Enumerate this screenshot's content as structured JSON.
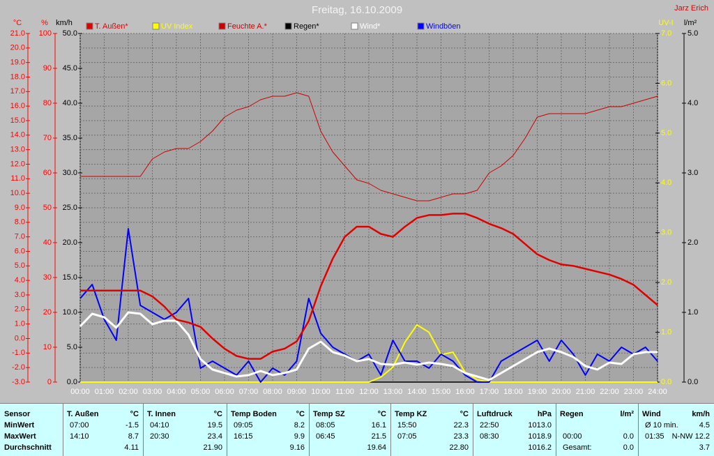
{
  "chart_data": {
    "type": "line",
    "title": "Freitag, 16.10.2009",
    "author": "Jarz Erich",
    "x": [
      0,
      0.5,
      1,
      1.5,
      2,
      2.5,
      3,
      3.5,
      4,
      4.5,
      5,
      5.5,
      6,
      6.5,
      7,
      7.5,
      8,
      8.5,
      9,
      9.5,
      10,
      10.5,
      11,
      11.5,
      12,
      12.5,
      13,
      13.5,
      14,
      14.5,
      15,
      15.5,
      16,
      16.5,
      17,
      17.5,
      18,
      18.5,
      19,
      19.5,
      20,
      20.5,
      21,
      21.5,
      22,
      22.5,
      23,
      23.5,
      24
    ],
    "xlim": [
      0,
      24
    ],
    "xticks": [
      {
        "value": 0,
        "label": "00:00"
      },
      {
        "value": 1,
        "label": "01:00"
      },
      {
        "value": 2,
        "label": "02:00"
      },
      {
        "value": 3,
        "label": "03:00"
      },
      {
        "value": 4,
        "label": "04:00"
      },
      {
        "value": 5,
        "label": "05:00"
      },
      {
        "value": 6,
        "label": "06:00"
      },
      {
        "value": 7,
        "label": "07:00"
      },
      {
        "value": 8,
        "label": "08:00"
      },
      {
        "value": 9,
        "label": "09:00"
      },
      {
        "value": 10,
        "label": "10:00"
      },
      {
        "value": 11,
        "label": "11:00"
      },
      {
        "value": 12,
        "label": "12:00"
      },
      {
        "value": 13,
        "label": "13:00"
      },
      {
        "value": 14,
        "label": "14:00"
      },
      {
        "value": 15,
        "label": "15:00"
      },
      {
        "value": 16,
        "label": "16:00"
      },
      {
        "value": 17,
        "label": "17:00"
      },
      {
        "value": 18,
        "label": "18:00"
      },
      {
        "value": 19,
        "label": "19:00"
      },
      {
        "value": 20,
        "label": "20:00"
      },
      {
        "value": 21,
        "label": "21:00"
      },
      {
        "value": 22,
        "label": "22:00"
      },
      {
        "value": 23,
        "label": "23:00"
      },
      {
        "value": 24,
        "label": "24:00"
      }
    ],
    "grid": true,
    "axes": [
      {
        "unit": "°C",
        "color": "#ff0000",
        "lim": [
          -3,
          21
        ],
        "ticks": [
          {
            "value": -3,
            "label": "-3.0"
          },
          {
            "value": -2,
            "label": "-2.0"
          },
          {
            "value": -1,
            "label": "-1.0"
          },
          {
            "value": 0,
            "label": "0.0"
          },
          {
            "value": 1,
            "label": "1.0"
          },
          {
            "value": 2,
            "label": "2.0"
          },
          {
            "value": 3,
            "label": "3.0"
          },
          {
            "value": 4,
            "label": "4.0"
          },
          {
            "value": 5,
            "label": "5.0"
          },
          {
            "value": 6,
            "label": "6.0"
          },
          {
            "value": 7,
            "label": "7.0"
          },
          {
            "value": 8,
            "label": "8.0"
          },
          {
            "value": 9,
            "label": "9.0"
          },
          {
            "value": 10,
            "label": "10.0"
          },
          {
            "value": 11,
            "label": "11.0"
          },
          {
            "value": 12,
            "label": "12.0"
          },
          {
            "value": 13,
            "label": "13.0"
          },
          {
            "value": 14,
            "label": "14.0"
          },
          {
            "value": 15,
            "label": "15.0"
          },
          {
            "value": 16,
            "label": "16.0"
          },
          {
            "value": 17,
            "label": "17.0"
          },
          {
            "value": 18,
            "label": "18.0"
          },
          {
            "value": 19,
            "label": "19.0"
          },
          {
            "value": 20,
            "label": "20.0"
          },
          {
            "value": 21,
            "label": "21.0"
          }
        ]
      },
      {
        "unit": "%",
        "color": "#ff0000",
        "lim": [
          0,
          100
        ],
        "ticks": [
          0,
          10,
          20,
          30,
          40,
          50,
          60,
          70,
          80,
          90,
          100
        ]
      },
      {
        "unit": "km/h",
        "color": "#000000",
        "lim": [
          0,
          50
        ],
        "ticks": [
          {
            "value": 0,
            "label": "0.0"
          },
          {
            "value": 5,
            "label": "5.0"
          },
          {
            "value": 10,
            "label": "10.0"
          },
          {
            "value": 15,
            "label": "15.0"
          },
          {
            "value": 20,
            "label": "20.0"
          },
          {
            "value": 25,
            "label": "25.0"
          },
          {
            "value": 30,
            "label": "30.0"
          },
          {
            "value": 35,
            "label": "35.0"
          },
          {
            "value": 40,
            "label": "40.0"
          },
          {
            "value": 45,
            "label": "45.0"
          },
          {
            "value": 50,
            "label": "50.0"
          }
        ]
      },
      {
        "unit": "UV-I",
        "color": "#ffff00",
        "lim": [
          0,
          7
        ],
        "ticks": [
          {
            "value": 0,
            "label": "0.0"
          },
          {
            "value": 1,
            "label": "1.0"
          },
          {
            "value": 2,
            "label": "2.0"
          },
          {
            "value": 3,
            "label": "3.0"
          },
          {
            "value": 4,
            "label": "4.0"
          },
          {
            "value": 5,
            "label": "5.0"
          },
          {
            "value": 6,
            "label": "6.0"
          },
          {
            "value": 7,
            "label": "7.0"
          }
        ]
      },
      {
        "unit": "l/m²",
        "color": "#000000",
        "lim": [
          0,
          5
        ],
        "ticks": [
          {
            "value": 0,
            "label": "0.0"
          },
          {
            "value": 1,
            "label": "1.0"
          },
          {
            "value": 2,
            "label": "2.0"
          },
          {
            "value": 3,
            "label": "3.0"
          },
          {
            "value": 4,
            "label": "4.0"
          },
          {
            "value": 5,
            "label": "5.0"
          }
        ]
      }
    ],
    "series": [
      {
        "name": "T. Außen*",
        "color": "#e00000",
        "axis": 0,
        "values": [
          3.3,
          3.3,
          3.3,
          3.3,
          3.3,
          3.3,
          2.9,
          2.2,
          1.3,
          1.1,
          0.8,
          0.0,
          -0.7,
          -1.2,
          -1.4,
          -1.4,
          -0.9,
          -0.7,
          -0.2,
          1.2,
          3.6,
          5.5,
          7.0,
          7.7,
          7.7,
          7.2,
          7.0,
          7.7,
          8.3,
          8.5,
          8.5,
          8.6,
          8.6,
          8.3,
          7.9,
          7.6,
          7.2,
          6.5,
          5.8,
          5.4,
          5.1,
          5.0,
          4.8,
          4.6,
          4.4,
          4.1,
          3.7,
          3.0,
          2.3
        ]
      },
      {
        "name": "UV Index",
        "color": "#ffff00",
        "axis": 3,
        "values": [
          0,
          0,
          0,
          0,
          0,
          0,
          0,
          0,
          0,
          0,
          0,
          0,
          0,
          0,
          0,
          0,
          0,
          0,
          0,
          0,
          0,
          0,
          0,
          0,
          0,
          0.1,
          0.3,
          0.8,
          1.15,
          1.0,
          0.55,
          0.6,
          0.2,
          0.05,
          0,
          0,
          0,
          0,
          0,
          0,
          0,
          0,
          0,
          0,
          0,
          0,
          0,
          0,
          0
        ]
      },
      {
        "name": "Feuchte A.*",
        "color": "#cc0000",
        "axis": 1,
        "values": [
          59,
          59,
          59,
          59,
          59,
          59,
          64,
          66,
          67,
          67,
          69,
          72,
          76,
          78,
          79,
          81,
          82,
          82,
          83,
          82,
          72,
          66,
          62,
          58,
          57,
          55,
          54,
          53,
          52,
          52,
          53,
          54,
          54,
          55,
          60,
          62,
          65,
          70,
          76,
          77,
          77,
          77,
          77,
          78,
          79,
          79,
          80,
          81,
          82
        ]
      },
      {
        "name": "Regen*",
        "color": "#000000",
        "axis": 4,
        "values": [
          0,
          0,
          0,
          0,
          0,
          0,
          0,
          0,
          0,
          0,
          0,
          0,
          0,
          0,
          0,
          0,
          0,
          0,
          0,
          0,
          0,
          0,
          0,
          0,
          0,
          0,
          0,
          0,
          0,
          0,
          0,
          0,
          0,
          0,
          0,
          0,
          0,
          0,
          0,
          0,
          0,
          0,
          0,
          0,
          0,
          0,
          0,
          0,
          0
        ]
      },
      {
        "name": "Wind*",
        "color": "#ffffff",
        "axis": 2,
        "values": [
          8.0,
          9.8,
          9.3,
          7.8,
          10,
          9.8,
          8.3,
          8.8,
          8.8,
          6.8,
          3.3,
          1.8,
          1.3,
          0.8,
          1.0,
          1.6,
          1.0,
          1.3,
          1.8,
          4.8,
          5.8,
          4.3,
          3.8,
          3.0,
          3.3,
          2.6,
          2.5,
          2.8,
          2.5,
          2.8,
          2.6,
          2.3,
          1.3,
          0.8,
          0.3,
          1.3,
          2.3,
          3.3,
          4.3,
          4.8,
          4.3,
          3.6,
          2.3,
          1.8,
          2.8,
          2.6,
          4.0,
          4.3,
          4.3
        ]
      },
      {
        "name": "Windböen",
        "color": "#0000ff",
        "axis": 2,
        "values": [
          12,
          14,
          9,
          6,
          22,
          11,
          10,
          9,
          10,
          12,
          2,
          3,
          2,
          1,
          3,
          0,
          2,
          1,
          3,
          12,
          7,
          5,
          4,
          3,
          4,
          1,
          6,
          3,
          3,
          2,
          4,
          3,
          1,
          0,
          0,
          3,
          4,
          5,
          6,
          3,
          6,
          4,
          1,
          4,
          3,
          5,
          4,
          5,
          3
        ]
      }
    ]
  },
  "table": {
    "row_labels": [
      "Sensor",
      "MinWert",
      "MaxWert",
      "Durchschnitt"
    ],
    "columns": [
      {
        "name": "T. Außen",
        "unit": "°C",
        "min": {
          "left": "07:00",
          "right": "-1.5"
        },
        "max": {
          "left": "14:10",
          "right": "8.7"
        },
        "avg": {
          "right": "4.11"
        }
      },
      {
        "name": "T. Innen",
        "unit": "°C",
        "min": {
          "left": "04:10",
          "right": "19.5"
        },
        "max": {
          "left": "20:30",
          "right": "23.4"
        },
        "avg": {
          "right": "21.90"
        }
      },
      {
        "name": "Temp Boden",
        "unit": "°C",
        "min": {
          "left": "09:05",
          "right": "8.2"
        },
        "max": {
          "left": "16:15",
          "right": "9.9"
        },
        "avg": {
          "right": "9.16"
        }
      },
      {
        "name": "Temp SZ",
        "unit": "°C",
        "min": {
          "left": "08:05",
          "right": "16.1"
        },
        "max": {
          "left": "06:45",
          "right": "21.5"
        },
        "avg": {
          "right": "19.64"
        }
      },
      {
        "name": "Temp KZ",
        "unit": "°C",
        "min": {
          "left": "15:50",
          "right": "22.3"
        },
        "max": {
          "left": "07:05",
          "right": "23.3"
        },
        "avg": {
          "right": "22.80"
        }
      },
      {
        "name": "Luftdruck",
        "unit": "hPa",
        "min": {
          "left": "22:50",
          "right": "1013.0"
        },
        "max": {
          "left": "08:30",
          "right": "1018.9"
        },
        "avg": {
          "right": "1016.2"
        }
      },
      {
        "name": "Regen",
        "unit": "l/m²",
        "max": {
          "left": "00:00",
          "right": "0.0"
        },
        "avg": {
          "left": "Gesamt:",
          "right": "0.0"
        }
      },
      {
        "name": "Wind",
        "unit": "km/h",
        "min": {
          "left": "Ø 10 min.",
          "right": "4.5"
        },
        "max": {
          "left": "01:35",
          "right": "N-NW 12.2"
        },
        "avg": {
          "right": "3.7"
        }
      }
    ]
  }
}
